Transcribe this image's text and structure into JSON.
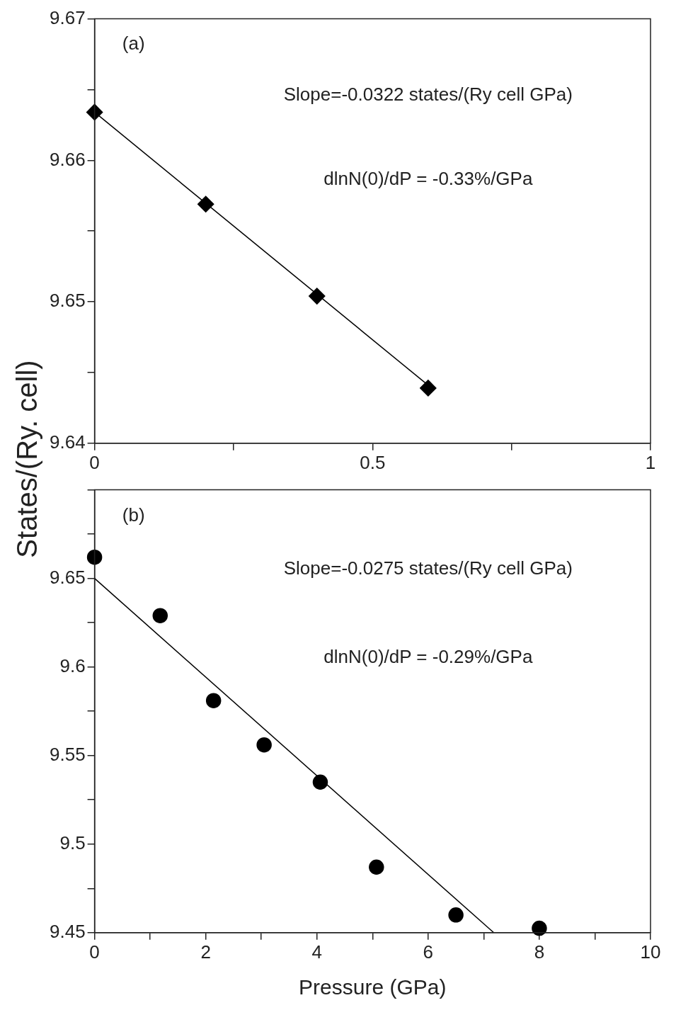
{
  "chart_data": [
    {
      "type": "scatter",
      "ylabel": "States/(Ry. cell)",
      "annotations": [
        "(a)",
        "Slope=-0.0322 states/(Ry cell GPa)",
        "dlnN(0)/dP = -0.33%/GPa"
      ],
      "xlim": [
        0,
        1
      ],
      "xticks": [
        0,
        {
          "value": 0.25,
          "label": null
        },
        0.5,
        {
          "value": 0.75,
          "label": null
        },
        1
      ],
      "ylim": [
        9.64,
        9.67
      ],
      "yticks": [
        9.64,
        {
          "value": 9.645,
          "label": null
        },
        9.65,
        {
          "value": 9.655,
          "label": null
        },
        9.66,
        {
          "value": 9.665,
          "label": null
        },
        9.67
      ],
      "grid": false,
      "legend": false,
      "series": [
        {
          "type": "scatter",
          "marker": "diamond",
          "color": "#000000",
          "x": [
            0,
            0.2,
            0.4,
            0.6
          ],
          "values": [
            9.6634,
            9.6569,
            9.6504,
            9.6439
          ]
        },
        {
          "type": "line",
          "marker": "none",
          "color": "#000000",
          "x": [
            0,
            0.6
          ],
          "values": [
            9.6634,
            9.6441
          ]
        }
      ]
    },
    {
      "type": "scatter",
      "xlabel": "Pressure (GPa)",
      "annotations": [
        "(b)",
        "Slope=-0.0275 states/(Ry cell GPa)",
        "dlnN(0)/dP = -0.29%/GPa"
      ],
      "xlim": [
        0,
        10
      ],
      "xticks": [
        0,
        {
          "value": 1,
          "label": null
        },
        2,
        {
          "value": 3,
          "label": null
        },
        4,
        {
          "value": 5,
          "label": null
        },
        6,
        {
          "value": 7,
          "label": null
        },
        8,
        {
          "value": 9,
          "label": null
        },
        10
      ],
      "ylim": [
        9.45,
        9.7
      ],
      "yticks": [
        9.45,
        {
          "value": 9.475,
          "label": null
        },
        9.5,
        {
          "value": 9.525,
          "label": null
        },
        9.55,
        {
          "value": 9.575,
          "label": null
        },
        9.6,
        {
          "value": 9.625,
          "label": null
        },
        9.65,
        {
          "value": 9.675,
          "label": null
        },
        {
          "value": 9.7,
          "label": null
        }
      ],
      "grid": false,
      "legend": false,
      "series": [
        {
          "type": "scatter",
          "marker": "circle",
          "color": "#000000",
          "x": [
            0,
            1.18,
            2.14,
            3.05,
            4.06,
            5.07,
            6.5,
            8.0
          ],
          "values": [
            9.662,
            9.629,
            9.581,
            9.556,
            9.535,
            9.487,
            9.46,
            9.4525
          ]
        },
        {
          "type": "line",
          "marker": "none",
          "color": "#000000",
          "x": [
            0,
            7.18
          ],
          "values": [
            9.65,
            9.45
          ]
        }
      ]
    }
  ]
}
